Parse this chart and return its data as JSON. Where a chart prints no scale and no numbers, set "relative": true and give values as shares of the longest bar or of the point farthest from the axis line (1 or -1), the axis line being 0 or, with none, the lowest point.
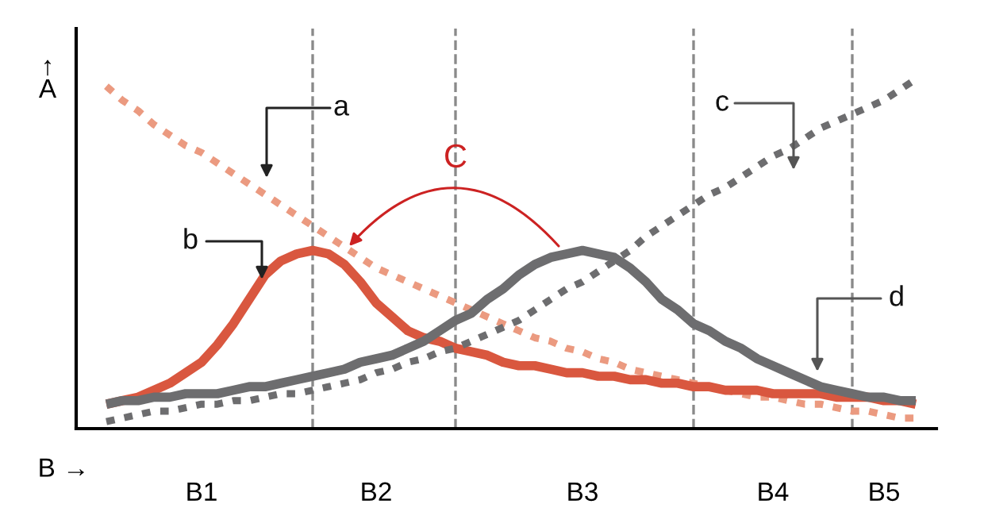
{
  "chart_data": {
    "type": "line",
    "relative": true,
    "xlabel": "B →",
    "ylabel": "↑\nA",
    "categories": [
      null,
      null,
      null,
      null,
      null,
      null,
      "B1",
      null,
      null,
      null,
      null,
      null,
      null,
      null,
      null,
      null,
      null,
      "B2",
      null,
      null,
      null,
      null,
      null,
      null,
      null,
      null,
      null,
      null,
      null,
      null,
      "B3",
      null,
      null,
      null,
      null,
      null,
      null,
      null,
      null,
      null,
      null,
      null,
      "B4",
      null,
      null,
      null,
      null,
      null,
      null,
      "B5",
      null,
      null
    ],
    "grid": false,
    "legend": false,
    "marker": "none",
    "series": [
      {
        "color": "#eb9a80",
        "line_style": "dotted",
        "values": [
          0.98,
          0.94,
          0.91,
          0.87,
          0.84,
          0.81,
          0.79,
          0.76,
          0.73,
          0.7,
          0.67,
          0.64,
          0.61,
          0.58,
          0.55,
          0.52,
          0.49,
          0.46,
          0.44,
          0.42,
          0.4,
          0.38,
          0.36,
          0.34,
          0.32,
          0.3,
          0.28,
          0.26,
          0.25,
          0.23,
          0.22,
          0.2,
          0.19,
          0.17,
          0.16,
          0.15,
          0.14,
          0.13,
          0.12,
          0.11,
          0.1,
          0.09,
          0.09,
          0.08,
          0.07,
          0.07,
          0.06,
          0.05,
          0.05,
          0.04,
          0.03,
          0.03
        ]
      },
      {
        "color": "#d9573f",
        "line_style": "solid",
        "values": [
          0.07,
          0.08,
          0.09,
          0.11,
          0.13,
          0.16,
          0.19,
          0.24,
          0.3,
          0.37,
          0.44,
          0.48,
          0.5,
          0.51,
          0.5,
          0.47,
          0.42,
          0.36,
          0.32,
          0.28,
          0.26,
          0.25,
          0.23,
          0.22,
          0.21,
          0.19,
          0.18,
          0.18,
          0.17,
          0.16,
          0.16,
          0.15,
          0.15,
          0.14,
          0.14,
          0.13,
          0.13,
          0.12,
          0.12,
          0.11,
          0.11,
          0.11,
          0.1,
          0.1,
          0.1,
          0.1,
          0.09,
          0.09,
          0.09,
          0.08,
          0.08,
          0.07
        ]
      },
      {
        "color": "#6d6d6f",
        "line_style": "dotted",
        "values": [
          0.02,
          0.03,
          0.04,
          0.05,
          0.05,
          0.06,
          0.07,
          0.07,
          0.08,
          0.08,
          0.09,
          0.1,
          0.1,
          0.11,
          0.12,
          0.13,
          0.14,
          0.16,
          0.17,
          0.19,
          0.2,
          0.22,
          0.23,
          0.25,
          0.27,
          0.29,
          0.31,
          0.34,
          0.37,
          0.4,
          0.42,
          0.45,
          0.48,
          0.51,
          0.55,
          0.58,
          0.61,
          0.64,
          0.67,
          0.69,
          0.72,
          0.75,
          0.78,
          0.8,
          0.83,
          0.86,
          0.88,
          0.9,
          0.92,
          0.94,
          0.97,
          1.0
        ]
      },
      {
        "color": "#6d6d6f",
        "line_style": "solid",
        "values": [
          0.07,
          0.08,
          0.08,
          0.09,
          0.09,
          0.1,
          0.1,
          0.1,
          0.11,
          0.12,
          0.12,
          0.13,
          0.14,
          0.15,
          0.16,
          0.17,
          0.19,
          0.2,
          0.21,
          0.23,
          0.25,
          0.28,
          0.31,
          0.33,
          0.37,
          0.4,
          0.44,
          0.47,
          0.49,
          0.5,
          0.51,
          0.5,
          0.49,
          0.46,
          0.42,
          0.37,
          0.34,
          0.3,
          0.28,
          0.25,
          0.23,
          0.2,
          0.18,
          0.16,
          0.14,
          0.12,
          0.11,
          0.1,
          0.09,
          0.09,
          0.08,
          0.08
        ]
      }
    ],
    "annotations": [
      "a",
      "b",
      "C",
      "c",
      "d"
    ]
  }
}
